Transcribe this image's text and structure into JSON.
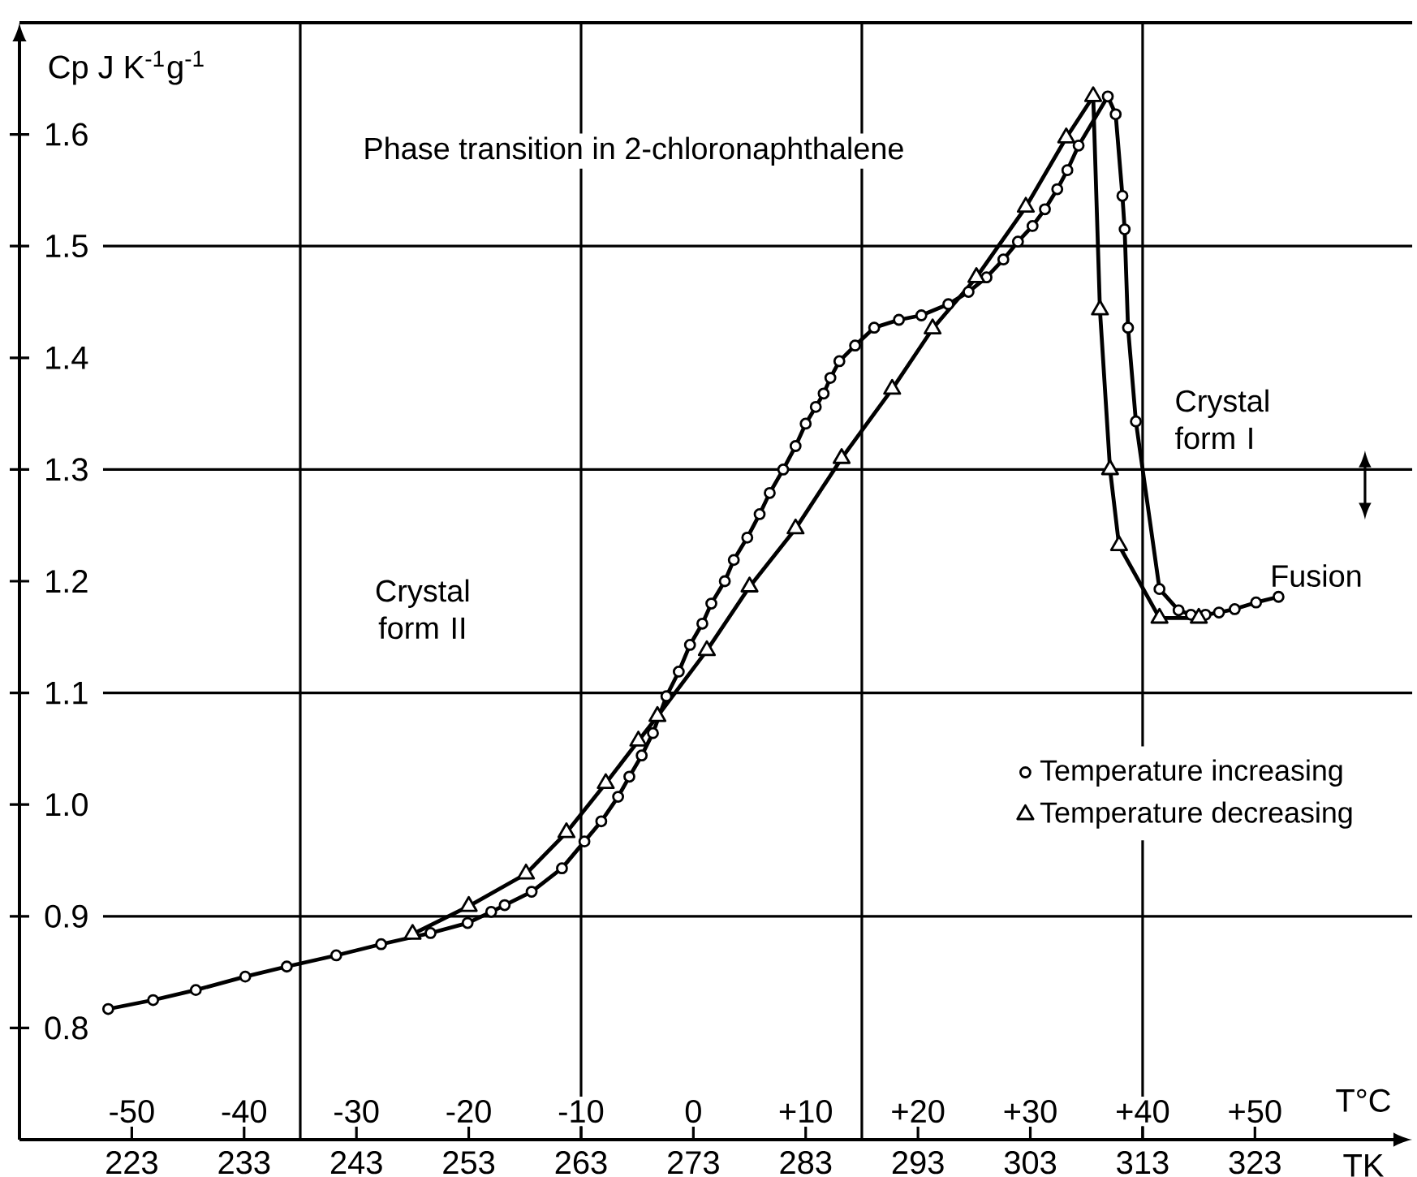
{
  "chart_data": {
    "type": "line",
    "title": "Phase transition in 2-chloronaphthalene",
    "xlabel": "TK",
    "x2label": "T°C",
    "ylabel": "Cp   J K$^{-1}$g$^{-1}$",
    "xlim": [
      213,
      337
    ],
    "xticks": [
      223,
      233,
      243,
      253,
      263,
      273,
      283,
      293,
      303,
      313,
      323
    ],
    "x2lim": [
      -60,
      64
    ],
    "x2ticks": [
      -50,
      -40,
      -30,
      -20,
      -10,
      0,
      {
        "value": 10,
        "label": "+10"
      },
      {
        "value": 20,
        "label": "+20"
      },
      {
        "value": 30,
        "label": "+30"
      },
      {
        "value": 40,
        "label": "+40"
      },
      {
        "value": 50,
        "label": "+50"
      }
    ],
    "ylim": [
      0.7,
      1.7
    ],
    "yticks": [
      0.8,
      0.9,
      {
        "value": 1.0,
        "label": "1.0"
      },
      1.1,
      1.2,
      1.3,
      1.4,
      1.5,
      1.6
    ],
    "legend": "right",
    "line_style": "solid",
    "series": [
      {
        "name": "Temperature increasing",
        "color": "#000000",
        "marker": "circle",
        "x": [
          220.9,
          224.9,
          228.7,
          233.1,
          236.8,
          241.2,
          245.2,
          249.6,
          252.9,
          255.0,
          256.2,
          258.6,
          261.3,
          263.3,
          264.8,
          266.3,
          267.3,
          268.4,
          269.4,
          270.6,
          271.7,
          272.7,
          273.8,
          274.6,
          275.8,
          276.6,
          277.8,
          278.9,
          279.8,
          281.0,
          282.1,
          283.0,
          283.9,
          284.6,
          285.2,
          286.0,
          287.4,
          289.1,
          291.3,
          293.3,
          295.7,
          297.5,
          299.1,
          300.6,
          301.9,
          303.2,
          304.3,
          305.4,
          306.3,
          307.3,
          309.9,
          310.6,
          311.2,
          311.4,
          311.7,
          312.4,
          314.5,
          316.2,
          317.3,
          318.6,
          319.8,
          321.2,
          323.1,
          325.1
        ],
        "values": [
          0.817,
          0.825,
          0.834,
          0.846,
          0.855,
          0.865,
          0.875,
          0.885,
          0.894,
          0.904,
          0.91,
          0.922,
          0.943,
          0.967,
          0.985,
          1.007,
          1.025,
          1.044,
          1.064,
          1.097,
          1.119,
          1.143,
          1.162,
          1.18,
          1.2,
          1.219,
          1.239,
          1.26,
          1.279,
          1.3,
          1.321,
          1.341,
          1.356,
          1.368,
          1.382,
          1.397,
          1.411,
          1.427,
          1.434,
          1.438,
          1.448,
          1.459,
          1.472,
          1.488,
          1.504,
          1.518,
          1.533,
          1.551,
          1.568,
          1.59,
          1.634,
          1.618,
          1.545,
          1.515,
          1.427,
          1.343,
          1.193,
          1.174,
          1.17,
          1.17,
          1.172,
          1.175,
          1.181,
          1.186
        ]
      },
      {
        "name": "Temperature decreasing",
        "color": "#000000",
        "marker": "triangle",
        "x": [
          248.0,
          253.0,
          258.1,
          261.7,
          265.2,
          268.1,
          269.8,
          274.2,
          278.0,
          282.1,
          286.2,
          290.7,
          294.3,
          298.2,
          302.6,
          306.2,
          308.6,
          309.2,
          310.1,
          310.9,
          314.5,
          318.0
        ],
        "values": [
          0.884,
          0.909,
          0.938,
          0.975,
          1.019,
          1.057,
          1.079,
          1.138,
          1.195,
          1.247,
          1.31,
          1.372,
          1.426,
          1.472,
          1.535,
          1.597,
          1.634,
          1.443,
          1.3,
          1.232,
          1.167,
          1.167
        ]
      }
    ],
    "ref_lines": [
      {
        "axis": "x",
        "value": 238,
        "color": "#000000"
      },
      {
        "axis": "x",
        "value": 263,
        "color": "#000000"
      },
      {
        "axis": "x",
        "value": 288,
        "color": "#000000"
      },
      {
        "axis": "x",
        "value": 313,
        "color": "#000000"
      },
      {
        "axis": "y",
        "value": 0.9,
        "color": "#000000"
      },
      {
        "axis": "y",
        "value": 1.1,
        "color": "#000000"
      },
      {
        "axis": "y",
        "value": 1.3,
        "color": "#000000"
      },
      {
        "axis": "y",
        "value": 1.5,
        "color": "#000000"
      }
    ],
    "annotations": [
      "Crystal form II",
      "Crystal form I",
      "Fusion"
    ]
  }
}
